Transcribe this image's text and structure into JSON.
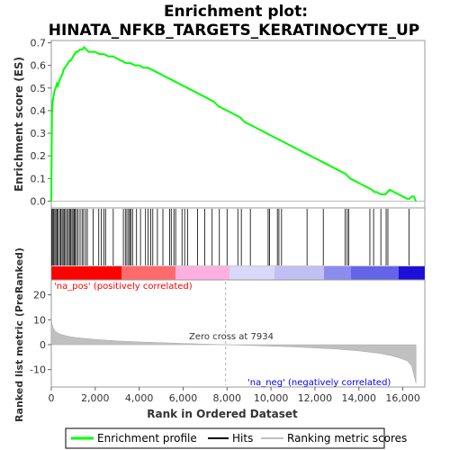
{
  "chart_data": {
    "type": "line",
    "title_line1": "Enrichment plot:",
    "title_line2": "HINATA_NFKB_TARGETS_KERATINOCYTE_UP",
    "top_panel": {
      "ylabel": "Enrichment score (ES)",
      "ylim": [
        -0.03,
        0.71
      ],
      "yticks": [
        "0.0",
        "0.1",
        "0.2",
        "0.3",
        "0.4",
        "0.5",
        "0.6",
        "0.7"
      ],
      "ytick_values": [
        0.0,
        0.1,
        0.2,
        0.3,
        0.4,
        0.5,
        0.6,
        0.7
      ],
      "series": {
        "name": "Enrichment profile",
        "color": "#00ff00",
        "x": [
          0,
          30,
          60,
          100,
          150,
          200,
          260,
          300,
          360,
          400,
          450,
          500,
          560,
          620,
          700,
          760,
          820,
          880,
          940,
          1000,
          1060,
          1120,
          1200,
          1300,
          1400,
          1500,
          1600,
          1700,
          2000,
          2200,
          2400,
          2600,
          2800,
          3000,
          3200,
          3400,
          3600,
          3800,
          4000,
          4200,
          4400,
          4600,
          4800,
          5000,
          5200,
          5400,
          5600,
          5800,
          6000,
          6200,
          6400,
          6600,
          6800,
          7000,
          7200,
          7400,
          7600,
          7800,
          8000,
          8200,
          8400,
          8600,
          8800,
          9000,
          9200,
          9400,
          9600,
          9800,
          10000,
          10200,
          10400,
          10600,
          10800,
          11000,
          11200,
          11400,
          11600,
          11800,
          12000,
          12200,
          12400,
          12600,
          12800,
          13000,
          13200,
          13400,
          13500,
          13600,
          13800,
          14000,
          14200,
          14400,
          14600,
          14700,
          14800,
          15000,
          15100,
          15200,
          15300,
          15400,
          15600,
          15800,
          16000,
          16200,
          16300,
          16400,
          16500,
          16600
        ],
        "values": [
          0.0,
          0.38,
          0.44,
          0.46,
          0.49,
          0.5,
          0.52,
          0.51,
          0.53,
          0.54,
          0.55,
          0.56,
          0.58,
          0.59,
          0.6,
          0.61,
          0.62,
          0.62,
          0.63,
          0.64,
          0.65,
          0.66,
          0.66,
          0.67,
          0.67,
          0.68,
          0.67,
          0.66,
          0.66,
          0.65,
          0.65,
          0.64,
          0.64,
          0.63,
          0.62,
          0.61,
          0.61,
          0.6,
          0.6,
          0.59,
          0.59,
          0.58,
          0.57,
          0.56,
          0.55,
          0.54,
          0.53,
          0.52,
          0.51,
          0.5,
          0.49,
          0.48,
          0.47,
          0.46,
          0.45,
          0.44,
          0.42,
          0.41,
          0.4,
          0.39,
          0.38,
          0.37,
          0.35,
          0.34,
          0.33,
          0.32,
          0.31,
          0.3,
          0.29,
          0.28,
          0.27,
          0.26,
          0.25,
          0.24,
          0.23,
          0.22,
          0.21,
          0.2,
          0.19,
          0.18,
          0.17,
          0.16,
          0.15,
          0.14,
          0.13,
          0.12,
          0.11,
          0.1,
          0.09,
          0.08,
          0.07,
          0.06,
          0.05,
          0.04,
          0.04,
          0.03,
          0.03,
          0.03,
          0.04,
          0.05,
          0.04,
          0.03,
          0.02,
          0.01,
          0.01,
          0.02,
          0.02,
          0.0
        ]
      }
    },
    "hits": [
      20,
      70,
      110,
      160,
      210,
      260,
      310,
      380,
      430,
      490,
      540,
      600,
      650,
      720,
      780,
      830,
      880,
      940,
      990,
      1040,
      1090,
      1150,
      1220,
      1310,
      1400,
      1470,
      1560,
      1640,
      1900,
      2160,
      2280,
      2390,
      2470,
      2820,
      3280,
      3370,
      3440,
      3520,
      3570,
      3630,
      3700,
      3880,
      4060,
      4290,
      4400,
      4530,
      4620,
      4830,
      5080,
      5390,
      5460,
      5580,
      5660,
      5950,
      6070,
      6200,
      6660,
      6980,
      7320,
      7650,
      8000,
      8490,
      8650,
      9060,
      9870,
      9930,
      10290,
      10360,
      10480,
      11640,
      12380,
      13380,
      13470,
      13540,
      14500,
      14670,
      15000,
      15240,
      15320,
      16280
    ],
    "ranked_panel": {
      "ylabel": "Ranked list metric (PreRanked)",
      "ylim": [
        -17,
        26
      ],
      "yticks": [
        "-10",
        "0",
        "10",
        "20"
      ],
      "ytick_values": [
        -10,
        0,
        10,
        20
      ],
      "x": [
        0,
        30,
        100,
        200,
        400,
        700,
        1000,
        1500,
        2000,
        3000,
        4000,
        5000,
        6000,
        7000,
        7934,
        9000,
        10000,
        11000,
        12000,
        13000,
        14000,
        14500,
        15000,
        15500,
        15900,
        16200,
        16400,
        16500,
        16600
      ],
      "values": [
        10.5,
        8.5,
        6.5,
        5.2,
        4.2,
        3.5,
        3.0,
        2.5,
        2.1,
        1.5,
        1.1,
        0.8,
        0.5,
        0.25,
        0.0,
        -0.3,
        -0.6,
        -0.9,
        -1.3,
        -1.8,
        -2.5,
        -3.0,
        -3.6,
        -4.5,
        -5.5,
        -6.5,
        -8.5,
        -12.0,
        -15.5
      ],
      "pos_label": "'na_pos' (positively correlated)",
      "neg_label": "'na_neg' (negatively correlated)",
      "zero_cross_label": "Zero cross at 7934",
      "zero_cross": 7934
    },
    "xlabel": "Rank in Ordered Dataset",
    "xlim": [
      0,
      17000
    ],
    "xticks": [
      "0",
      "2,000",
      "4,000",
      "6,000",
      "8,000",
      "10,000",
      "12,000",
      "14,000",
      "16,000"
    ],
    "xtick_values": [
      0,
      2000,
      4000,
      6000,
      8000,
      10000,
      12000,
      14000,
      16000
    ],
    "n_genes": 16600,
    "legend": {
      "placement": "bottom",
      "items": [
        {
          "label": "Enrichment profile",
          "color": "#00ff00"
        },
        {
          "label": "Hits",
          "color": "#000000"
        },
        {
          "label": "Ranking metric scores",
          "color": "#c0c0c0"
        }
      ]
    },
    "colors": {
      "pos_text": "#ff0000",
      "neg_text": "#0000ff",
      "metric_fill": "#c0c0c0",
      "zero_line": "#c0c0c0"
    }
  }
}
